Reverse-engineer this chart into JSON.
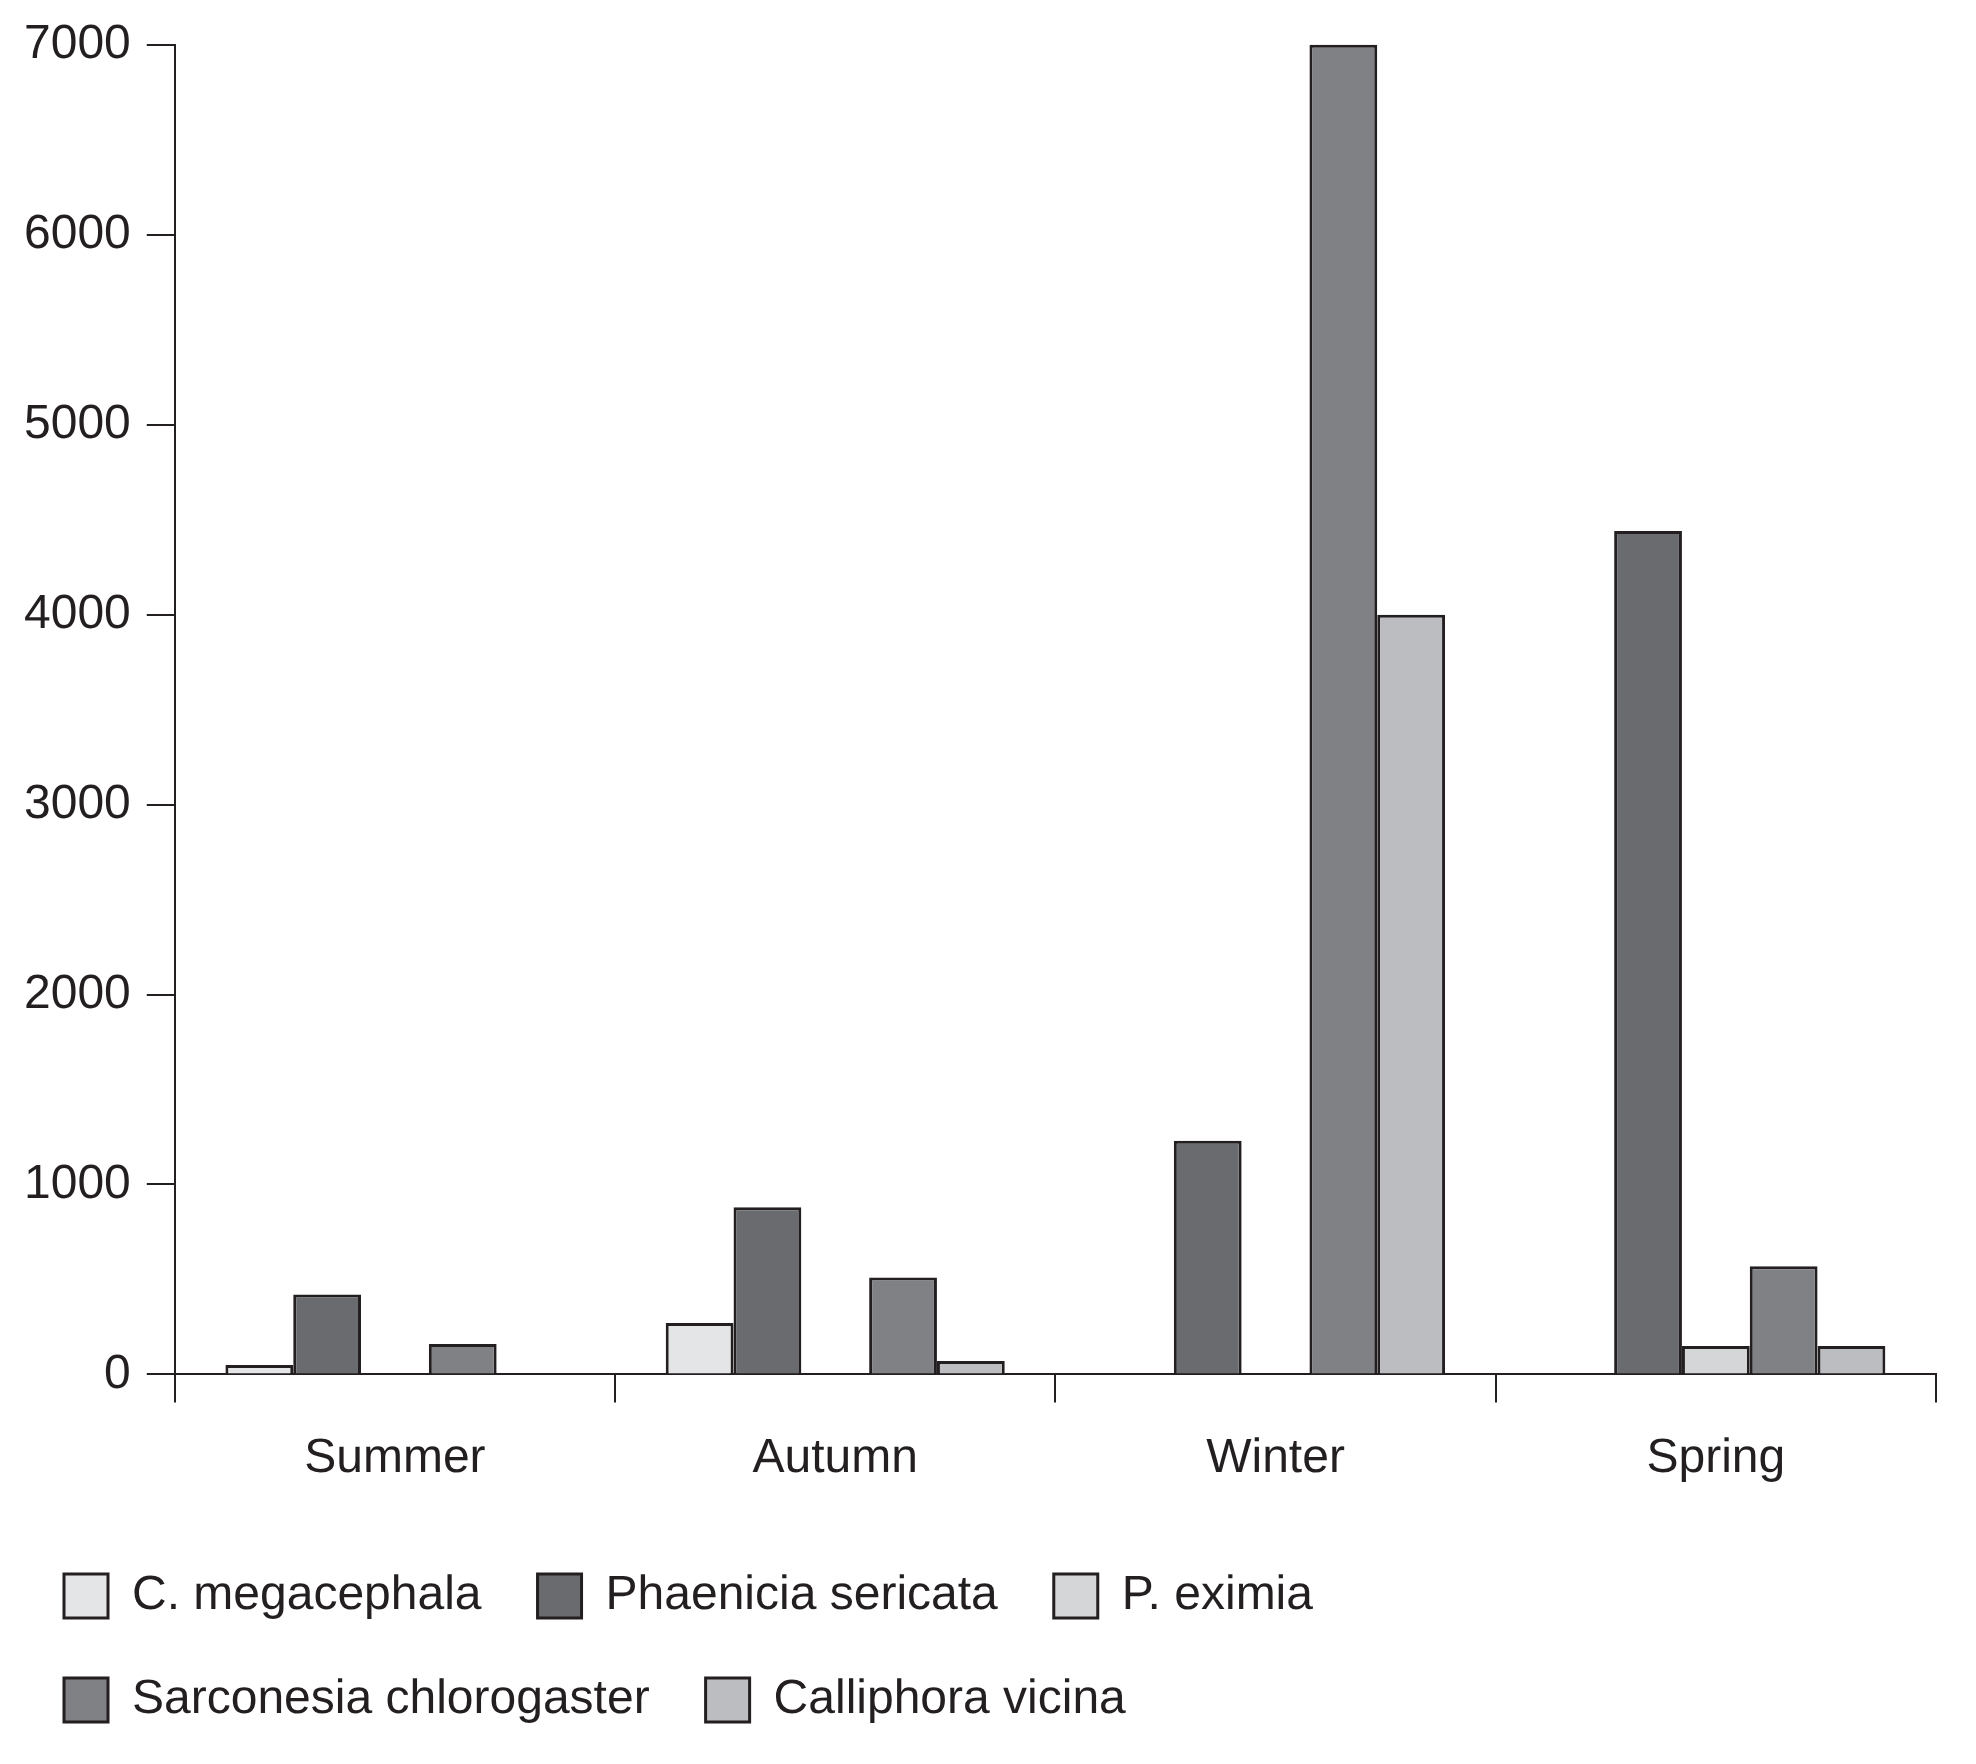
{
  "chart_data": {
    "type": "bar",
    "categories": [
      "Summer",
      "Autumn",
      "Winter",
      "Spring"
    ],
    "series": [
      {
        "name": "C. megacephala",
        "color": "#e4e5e7",
        "values": [
          50,
          270,
          0,
          0
        ]
      },
      {
        "name": "Phaenicia sericata",
        "color": "#6a6b6f",
        "values": [
          420,
          880,
          1230,
          4440
        ]
      },
      {
        "name": "P. eximia",
        "color": "#d5d6d8",
        "values": [
          0,
          0,
          0,
          150
        ]
      },
      {
        "name": "Sarconesia chlorogaster",
        "color": "#808185",
        "values": [
          160,
          510,
          7000,
          570
        ]
      },
      {
        "name": "Calliphora vicina",
        "color": "#bcbdc0",
        "values": [
          0,
          70,
          4000,
          150
        ]
      }
    ],
    "ylim": [
      0,
      7000
    ],
    "yticks": [
      0,
      1000,
      2000,
      3000,
      4000,
      5000,
      6000,
      7000
    ],
    "grid": false,
    "legend": "bottom"
  }
}
